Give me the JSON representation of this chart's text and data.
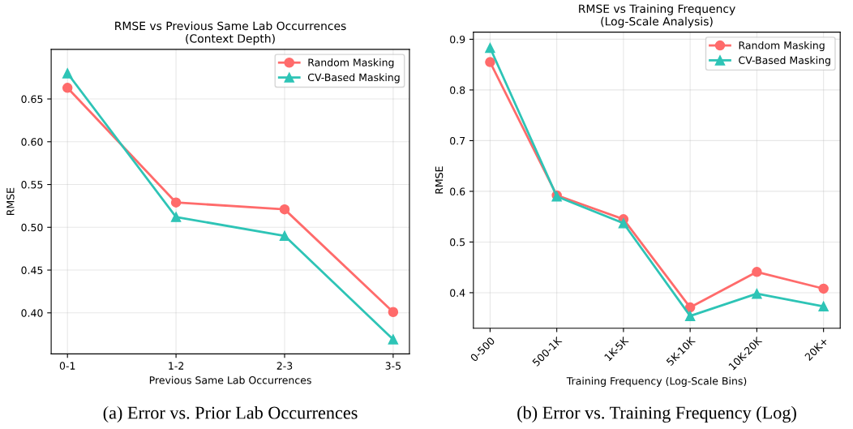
{
  "chart_data": [
    {
      "type": "line",
      "title": "RMSE vs Previous Same Lab Occurrences\n(Context Depth)",
      "xlabel": "Previous Same Lab Occurrences",
      "ylabel": "RMSE",
      "categories": [
        "0-1",
        "1-2",
        "2-3",
        "3-5"
      ],
      "series": [
        {
          "name": "Random Masking",
          "color": "#ff6b6b",
          "marker": "circle",
          "values": [
            0.663,
            0.529,
            0.521,
            0.401
          ]
        },
        {
          "name": "CV-Based Masking",
          "color": "#2ec4b6",
          "marker": "triangle",
          "values": [
            0.68,
            0.512,
            0.49,
            0.369
          ]
        }
      ],
      "ylim": [
        0.352,
        0.708
      ],
      "yticks": [
        {
          "value": 0.4,
          "label": "0.40"
        },
        {
          "value": 0.45,
          "label": "0.45"
        },
        {
          "value": 0.5,
          "label": "0.50"
        },
        {
          "value": 0.55,
          "label": "0.55"
        },
        {
          "value": 0.6,
          "label": "0.60"
        },
        {
          "value": 0.65,
          "label": "0.65"
        }
      ],
      "grid": true,
      "legend": "top right",
      "line_style": "solid",
      "annotations": [
        "(a) Error vs. Prior Lab Occurrences"
      ]
    },
    {
      "type": "line",
      "title": "RMSE vs Training Frequency\n(Log-Scale Analysis)",
      "xlabel": "Training Frequency (Log-Scale Bins)",
      "ylabel": "RMSE",
      "categories": [
        "0-500",
        "500-1K",
        "1K-5K",
        "5K-10K",
        "10K-20K",
        "20K+"
      ],
      "series": [
        {
          "name": "Random Masking",
          "color": "#ff6b6b",
          "marker": "circle",
          "values": [
            0.855,
            0.592,
            0.545,
            0.371,
            0.441,
            0.408
          ]
        },
        {
          "name": "CV-Based Masking",
          "color": "#2ec4b6",
          "marker": "triangle",
          "values": [
            0.883,
            0.59,
            0.537,
            0.354,
            0.398,
            0.373
          ]
        }
      ],
      "ylim": [
        0.33,
        0.914
      ],
      "yticks": [
        0.4,
        0.5,
        0.6,
        0.7,
        0.8,
        0.9
      ],
      "grid": true,
      "legend": "top right",
      "line_style": "solid",
      "annotations": [
        "(b) Error vs. Training Frequency (Log)"
      ]
    }
  ]
}
